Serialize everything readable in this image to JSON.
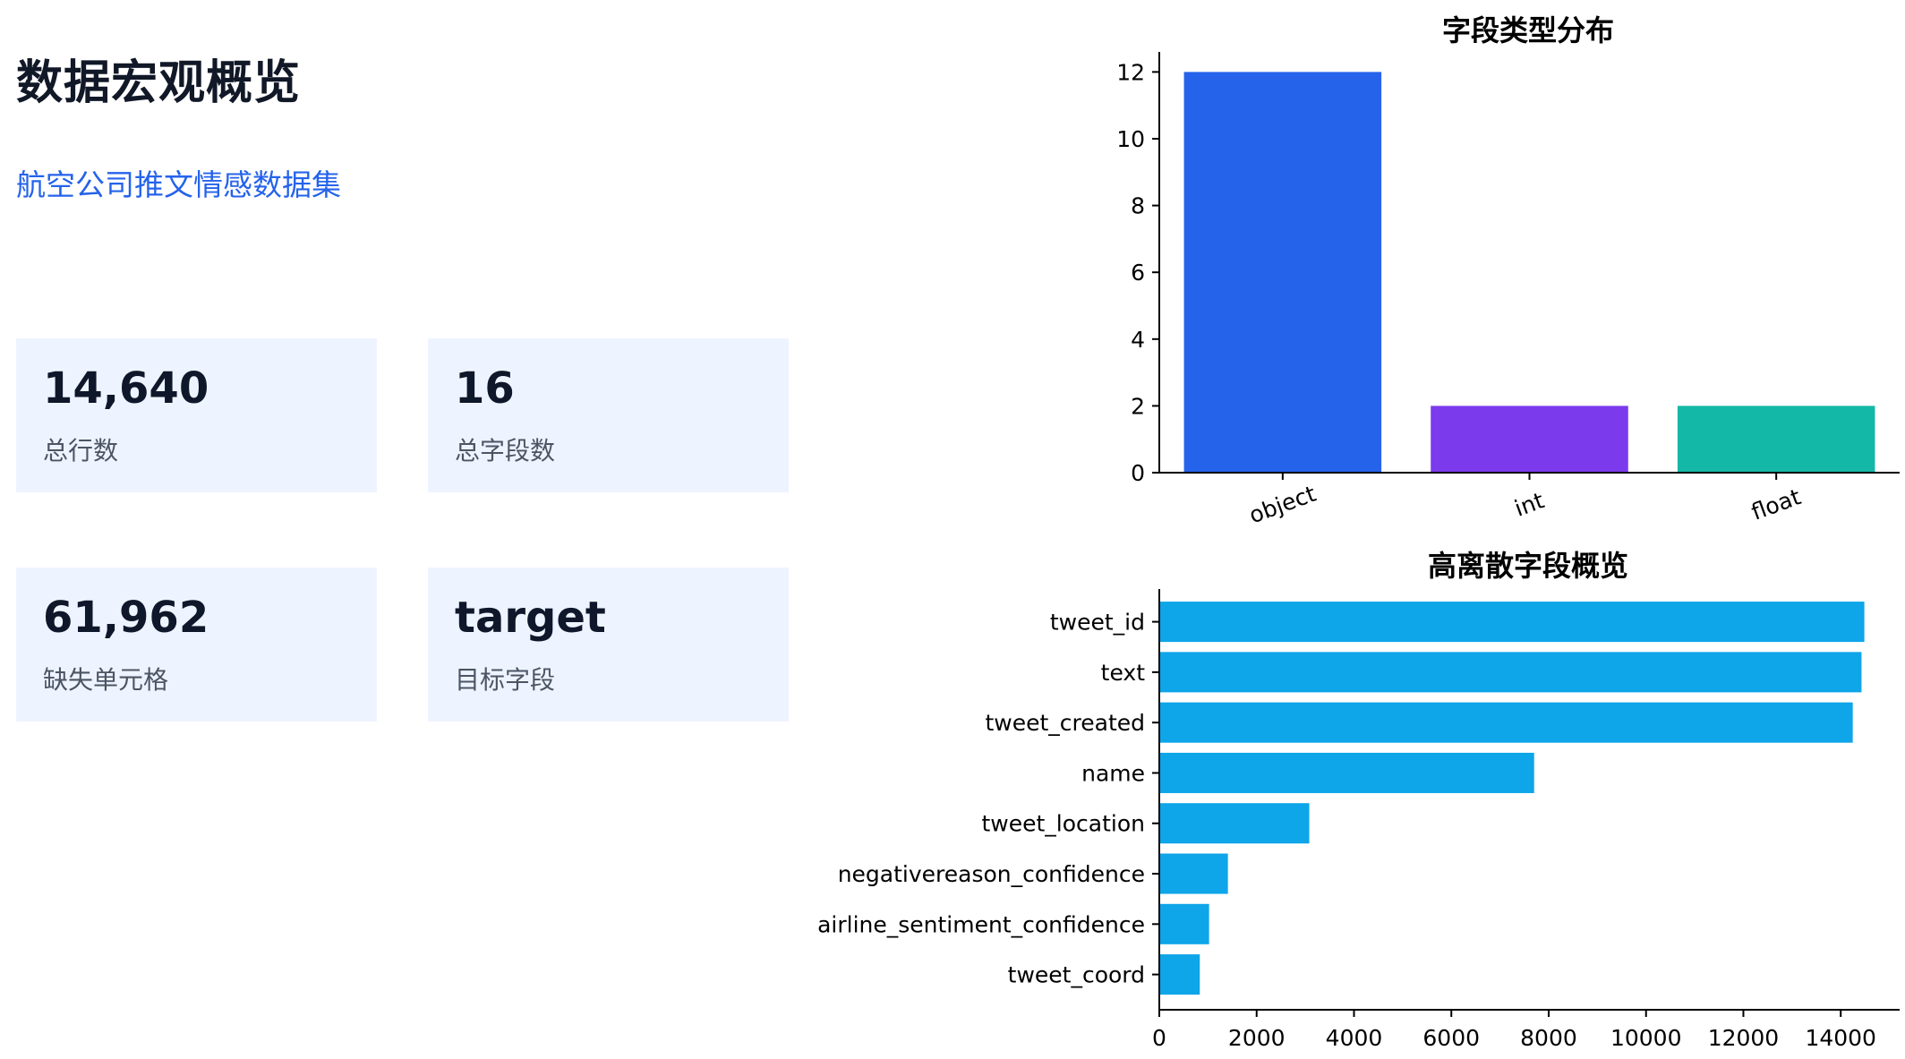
{
  "header": {
    "title": "数据宏观概览",
    "subtitle": "航空公司推文情感数据集"
  },
  "stats": [
    {
      "value": "14,640",
      "label": "总行数"
    },
    {
      "value": "16",
      "label": "总字段数"
    },
    {
      "value": "61,962",
      "label": "缺失单元格"
    },
    {
      "value": "target",
      "label": "目标字段"
    }
  ],
  "colors": {
    "accent": "#2563eb",
    "card_bg": "#eef4ff",
    "bar_object": "#2563eb",
    "bar_int": "#7c3aed",
    "bar_float": "#14b8a6",
    "bar_cardinality": "#0ea5e9"
  },
  "chart_data": [
    {
      "type": "bar",
      "title": "字段类型分布",
      "categories": [
        "object",
        "int",
        "float"
      ],
      "values": [
        12,
        2,
        2
      ],
      "colors": [
        "#2563eb",
        "#7c3aed",
        "#14b8a6"
      ],
      "ylim": [
        0,
        12.6
      ],
      "yticks": [
        0,
        2,
        4,
        6,
        8,
        10,
        12
      ],
      "xlabel": "",
      "ylabel": "",
      "grid": false
    },
    {
      "type": "bar",
      "orientation": "horizontal",
      "title": "高离散字段概览",
      "categories": [
        "tweet_id",
        "text",
        "tweet_created",
        "name",
        "tweet_location",
        "negativereason_confidence",
        "airline_sentiment_confidence",
        "tweet_coord"
      ],
      "values": [
        14485,
        14427,
        14247,
        7701,
        3081,
        1410,
        1023,
        832
      ],
      "color": "#0ea5e9",
      "xlim": [
        0,
        15210
      ],
      "xticks": [
        0,
        2000,
        4000,
        6000,
        8000,
        10000,
        12000,
        14000
      ],
      "xlabel": "",
      "ylabel": "",
      "grid": false
    }
  ]
}
